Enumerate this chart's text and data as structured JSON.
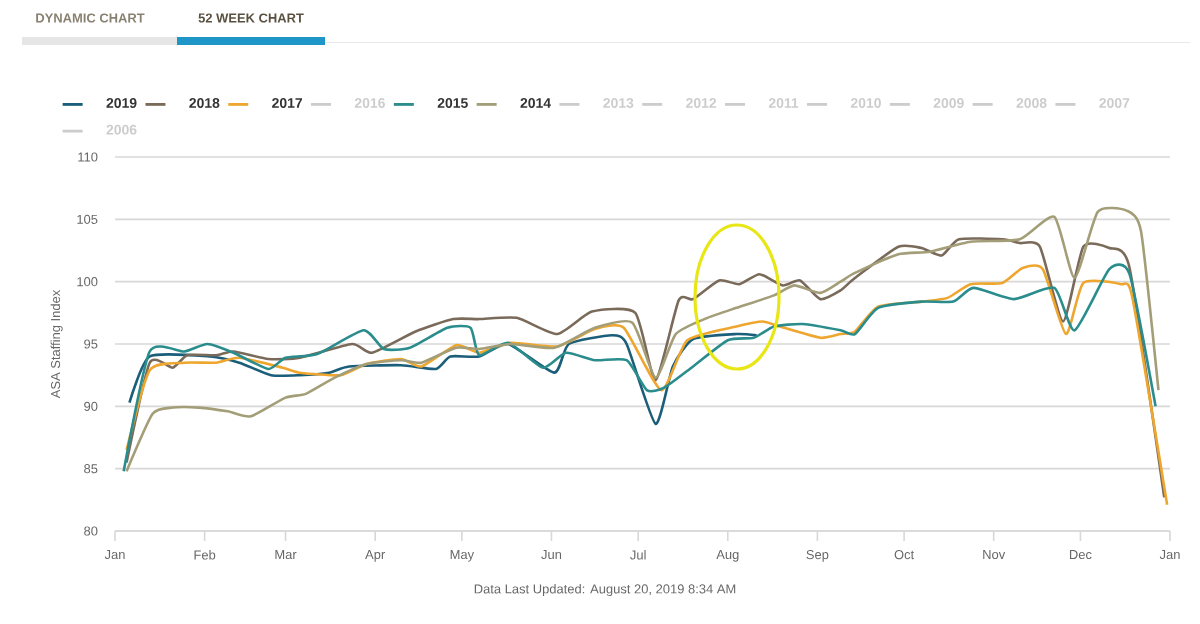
{
  "chart_data": {
    "type": "line",
    "ylabel": "ASA Staffing Index",
    "annotations": [
      "DYNAMIC CHART",
      "52 WEEK CHART",
      "Data Last Updated: August 20, 2019 8:34 AM"
    ],
    "xlim": [
      "2019-01-01",
      "2020-01-01"
    ],
    "ylim": [
      80,
      110
    ],
    "xticks": [
      {
        "value": "2019-01-01",
        "label": "Jan"
      },
      {
        "value": "2019-02-01",
        "label": "Feb"
      },
      {
        "value": "2019-03-01",
        "label": "Mar"
      },
      {
        "value": "2019-04-01",
        "label": "Apr"
      },
      {
        "value": "2019-05-01",
        "label": "May"
      },
      {
        "value": "2019-06-01",
        "label": "Jun"
      },
      {
        "value": "2019-07-01",
        "label": "Jul"
      },
      {
        "value": "2019-08-01",
        "label": "Aug"
      },
      {
        "value": "2019-09-01",
        "label": "Sep"
      },
      {
        "value": "2019-10-01",
        "label": "Oct"
      },
      {
        "value": "2019-11-01",
        "label": "Nov"
      },
      {
        "value": "2019-12-01",
        "label": "Dec"
      },
      {
        "value": "2020-01-01",
        "label": "Jan"
      }
    ],
    "yticks": [
      80,
      85,
      90,
      95,
      100,
      105,
      110
    ],
    "grid": "y",
    "legend": "top",
    "series": [
      {
        "name": "2019",
        "color": "#1b5e7a",
        "x": [
          "2019-01-06",
          "2019-01-13",
          "2019-02-03",
          "2019-02-13",
          "2019-02-24",
          "2019-03-06",
          "2019-03-16",
          "2019-03-23",
          "2019-04-10",
          "2019-04-22",
          "2019-04-27",
          "2019-05-07",
          "2019-05-17",
          "2019-06-02",
          "2019-06-07",
          "2019-06-22",
          "2019-06-27",
          "2019-07-07",
          "2019-07-13",
          "2019-07-20",
          "2019-08-04",
          "2019-08-11"
        ],
        "values": [
          90.3,
          94,
          94,
          93.5,
          92.5,
          92.5,
          92.7,
          93.2,
          93.3,
          93.0,
          94,
          94,
          95,
          92.7,
          95,
          95.7,
          95,
          88.6,
          93.2,
          95.4,
          95.8,
          95.7
        ]
      },
      {
        "name": "2018",
        "color": "#7a6a5a",
        "x": [
          "2019-01-05",
          "2019-01-13",
          "2019-01-21",
          "2019-01-26",
          "2019-02-05",
          "2019-02-11",
          "2019-02-23",
          "2019-03-06",
          "2019-03-24",
          "2019-03-31",
          "2019-04-15",
          "2019-04-28",
          "2019-05-07",
          "2019-05-20",
          "2019-06-03",
          "2019-06-15",
          "2019-06-30",
          "2019-07-07",
          "2019-07-15",
          "2019-07-20",
          "2019-07-29",
          "2019-08-05",
          "2019-08-12",
          "2019-08-20",
          "2019-08-26",
          "2019-09-02",
          "2019-09-09",
          "2019-09-14",
          "2019-09-29",
          "2019-10-07",
          "2019-10-14",
          "2019-10-20",
          "2019-11-04",
          "2019-11-10",
          "2019-11-17",
          "2019-11-25",
          "2019-12-02",
          "2019-12-11",
          "2019-12-18",
          "2019-12-30"
        ],
        "values": [
          85.5,
          93.5,
          93.1,
          94.1,
          94.1,
          94.4,
          93.8,
          93.9,
          95,
          94.3,
          96,
          97,
          97,
          97.1,
          95.8,
          97.6,
          97.5,
          92.1,
          98.5,
          98.6,
          100.1,
          99.8,
          100.6,
          99.7,
          100.1,
          98.6,
          99.3,
          100.3,
          102.8,
          102.7,
          102.1,
          103.4,
          103.4,
          103.1,
          102.8,
          96.8,
          102.8,
          102.7,
          101.1,
          82.7
        ]
      },
      {
        "name": "2017",
        "color": "#eea62f",
        "x": [
          "2019-01-05",
          "2019-01-13",
          "2019-01-25",
          "2019-02-05",
          "2019-02-13",
          "2019-02-28",
          "2019-03-06",
          "2019-03-20",
          "2019-03-29",
          "2019-04-10",
          "2019-04-17",
          "2019-04-29",
          "2019-05-07",
          "2019-05-18",
          "2019-06-03",
          "2019-06-16",
          "2019-06-26",
          "2019-07-09",
          "2019-07-18",
          "2019-08-04",
          "2019-08-13",
          "2019-08-19",
          "2019-09-02",
          "2019-09-09",
          "2019-09-14",
          "2019-09-22",
          "2019-10-07",
          "2019-10-16",
          "2019-10-24",
          "2019-11-04",
          "2019-11-11",
          "2019-11-18",
          "2019-11-26",
          "2019-12-02",
          "2019-12-15",
          "2019-12-19",
          "2019-12-31"
        ],
        "values": [
          86.5,
          92.9,
          93.5,
          93.5,
          93.9,
          93.1,
          92.7,
          92.5,
          93.4,
          93.8,
          93.2,
          94.9,
          94.3,
          95.1,
          94.8,
          96.2,
          96.3,
          91.3,
          95.3,
          96.4,
          96.8,
          96.4,
          95.5,
          95.8,
          96,
          98,
          98.4,
          98.7,
          99.8,
          99.9,
          101.1,
          101,
          95.8,
          99.9,
          99.8,
          98.7,
          82.1
        ]
      },
      {
        "name": "2016",
        "color": "#cccccc"
      },
      {
        "name": "2015",
        "color": "#2a8c8c",
        "x": [
          "2019-01-04",
          "2019-01-13",
          "2019-01-25",
          "2019-02-02",
          "2019-02-11",
          "2019-02-23",
          "2019-03-01",
          "2019-03-12",
          "2019-03-28",
          "2019-04-04",
          "2019-04-13",
          "2019-04-26",
          "2019-05-04",
          "2019-05-07",
          "2019-05-17",
          "2019-05-29",
          "2019-06-06",
          "2019-06-16",
          "2019-06-27",
          "2019-07-04",
          "2019-07-10",
          "2019-07-20",
          "2019-08-01",
          "2019-08-10",
          "2019-08-17",
          "2019-08-27",
          "2019-09-09",
          "2019-09-14",
          "2019-09-22",
          "2019-10-07",
          "2019-10-18",
          "2019-10-25",
          "2019-11-08",
          "2019-11-22",
          "2019-11-29",
          "2019-12-11",
          "2019-12-18",
          "2019-12-27"
        ],
        "values": [
          84.8,
          94.4,
          94.4,
          95,
          94.3,
          93,
          93.9,
          94.2,
          96.1,
          94.6,
          94.7,
          96.3,
          96.3,
          94.1,
          95.1,
          93.1,
          94.3,
          93.7,
          93.7,
          91.3,
          91.5,
          93.2,
          95.3,
          95.5,
          96.4,
          96.6,
          96.1,
          95.8,
          97.9,
          98.4,
          98.4,
          99.5,
          98.6,
          99.5,
          96.1,
          101,
          100.6,
          90
        ]
      },
      {
        "name": "2014",
        "color": "#a39e78",
        "x": [
          "2019-01-05",
          "2019-01-14",
          "2019-01-21",
          "2019-01-30",
          "2019-02-09",
          "2019-02-17",
          "2019-03-01",
          "2019-03-08",
          "2019-03-18",
          "2019-03-29",
          "2019-04-10",
          "2019-04-17",
          "2019-04-29",
          "2019-05-07",
          "2019-05-18",
          "2019-06-02",
          "2019-06-16",
          "2019-06-29",
          "2019-07-07",
          "2019-07-14",
          "2019-07-25",
          "2019-08-04",
          "2019-08-17",
          "2019-08-24",
          "2019-09-02",
          "2019-09-09",
          "2019-09-14",
          "2019-09-29",
          "2019-10-10",
          "2019-10-24",
          "2019-11-10",
          "2019-11-22",
          "2019-11-29",
          "2019-12-07",
          "2019-12-17",
          "2019-12-22",
          "2019-12-28"
        ],
        "values": [
          84.8,
          89.4,
          89.9,
          89.9,
          89.6,
          89.2,
          90.7,
          91,
          92.3,
          93.4,
          93.7,
          93.5,
          94.7,
          94.6,
          95,
          94.7,
          96.3,
          96.7,
          92.3,
          95.8,
          97.1,
          97.9,
          98.9,
          99.7,
          99.1,
          100,
          100.7,
          102.2,
          102.4,
          103.2,
          103.4,
          105.2,
          100.3,
          105.6,
          105.7,
          104,
          91.3
        ]
      },
      {
        "name": "2013",
        "color": "#cccccc"
      },
      {
        "name": "2012",
        "color": "#cccccc"
      },
      {
        "name": "2011",
        "color": "#cccccc"
      },
      {
        "name": "2010",
        "color": "#cccccc"
      },
      {
        "name": "2009",
        "color": "#cccccc"
      },
      {
        "name": "2008",
        "color": "#cccccc"
      },
      {
        "name": "2007",
        "color": "#cccccc"
      },
      {
        "name": "2006",
        "color": "#cccccc"
      }
    ]
  }
}
